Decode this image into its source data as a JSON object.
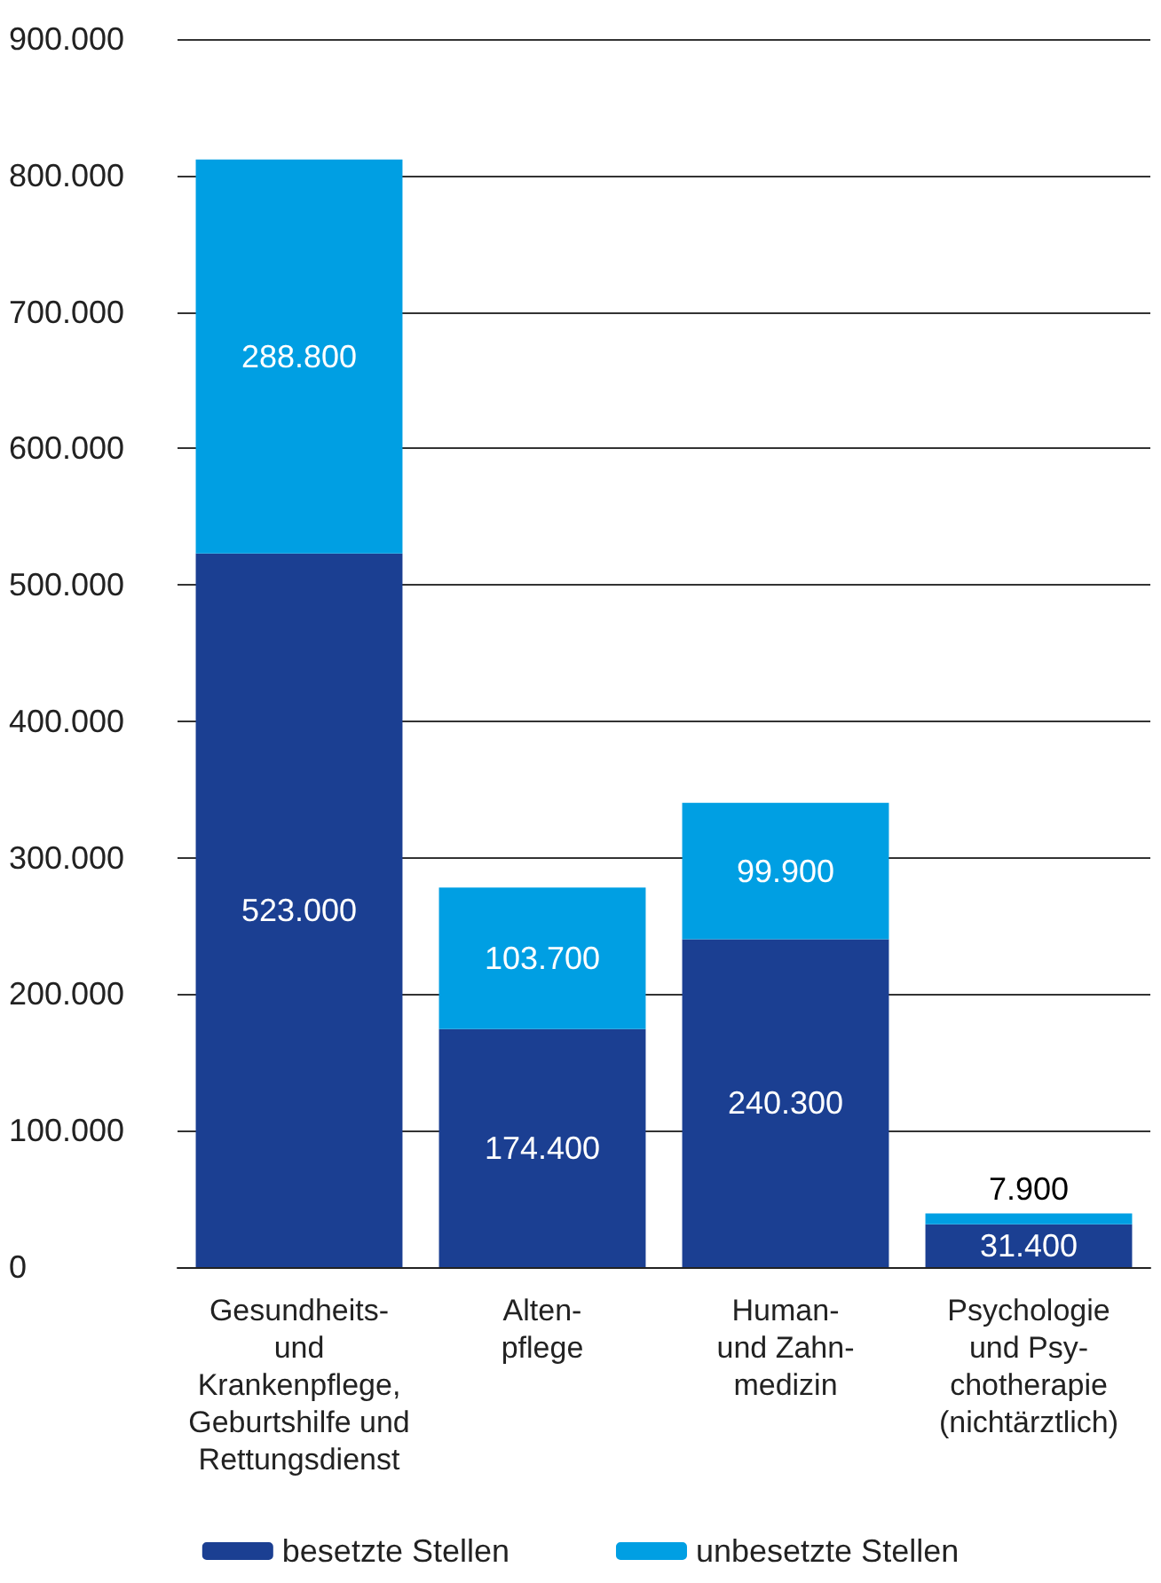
{
  "chart_data": {
    "type": "bar",
    "stacked": true,
    "categories": [
      "Gesundheits-\nund\nKrankenpflege,\nGeburtshilfe und\nRettungsdienst",
      "Alten-\npflege",
      "Human-\nund Zahn-\nmedizin",
      "Psychologie\nund Psy-\nchotherapie\n(nichtärztlich)"
    ],
    "series": [
      {
        "name": "besetzte Stellen",
        "color": "#1b3f92",
        "values": [
          523000,
          174400,
          240300,
          31400
        ],
        "value_labels": [
          "523.000",
          "174.400",
          "240.300",
          "31.400"
        ]
      },
      {
        "name": "unbesetzte Stellen",
        "color": "#009fe3",
        "values": [
          288800,
          103700,
          99900,
          7900
        ],
        "value_labels": [
          "288.800",
          "103.700",
          "99.900",
          "7.900"
        ]
      }
    ],
    "ylim": [
      0,
      900000
    ],
    "yticks": [
      {
        "value": 0,
        "label": "0"
      },
      {
        "value": 100000,
        "label": "100.000"
      },
      {
        "value": 200000,
        "label": "200.000"
      },
      {
        "value": 300000,
        "label": "300.000"
      },
      {
        "value": 400000,
        "label": "400.000"
      },
      {
        "value": 500000,
        "label": "500.000"
      },
      {
        "value": 600000,
        "label": "600.000"
      },
      {
        "value": 700000,
        "label": "700.000"
      },
      {
        "value": 800000,
        "label": "800.000"
      },
      {
        "value": 900000,
        "label": "900.000"
      }
    ],
    "grid": "y",
    "legend": "bottom"
  }
}
